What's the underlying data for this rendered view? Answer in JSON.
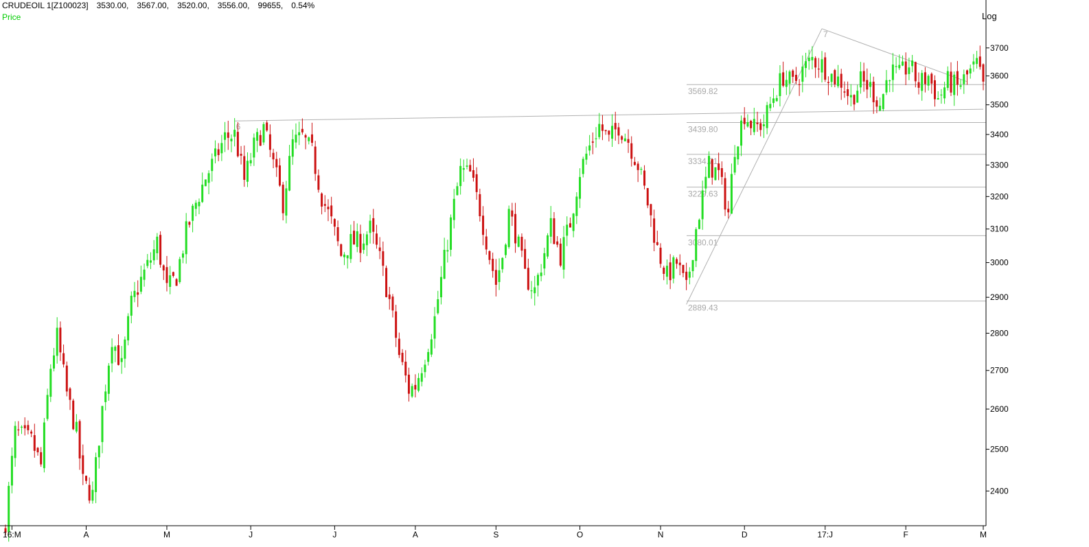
{
  "header": {
    "symbol": "CRUDEOIL 1[Z100023]",
    "ohlc": [
      "3530.00,",
      "3567.00,",
      "3520.00,",
      "3556.00,",
      "99655,",
      "0.54%"
    ],
    "series_label": "Price",
    "scale_label": "Log"
  },
  "colors": {
    "up": "#22dd22",
    "down": "#cc1111",
    "lines": "#b0b0b0",
    "price_label": "#00cc00"
  },
  "chart_data": {
    "type": "candlestick",
    "y_scale": "log",
    "ylim": [
      2320,
      3800
    ],
    "y_ticks": [
      2400,
      2500,
      2600,
      2700,
      2800,
      2900,
      3000,
      3100,
      3200,
      3300,
      3400,
      3500,
      3600,
      3700
    ],
    "x_tick_labels": [
      "16:M",
      "A",
      "M",
      "J",
      "J",
      "A",
      "S",
      "O",
      "N",
      "D",
      "17:J",
      "F",
      "M"
    ],
    "x_tick_index": [
      2,
      25,
      50,
      76,
      102,
      127,
      152,
      178,
      203,
      229,
      254,
      279,
      303
    ],
    "fib_levels": [
      {
        "label": "3569.82",
        "value": 3569.82
      },
      {
        "label": "3439.80",
        "value": 3439.8
      },
      {
        "label": "3334.71",
        "value": 3334.71
      },
      {
        "label": "3229.63",
        "value": 3229.63
      },
      {
        "label": "3080.01",
        "value": 3080.01
      },
      {
        "label": "2889.43",
        "value": 2889.43
      }
    ],
    "annotations": [
      {
        "label": "6",
        "index": 71,
        "value": 3445
      },
      {
        "label": "7",
        "index": 253,
        "value": 3770
      }
    ],
    "trendlines": [
      {
        "from": [
          71,
          3445
        ],
        "to": [
          303,
          3485
        ]
      },
      {
        "from": [
          211,
          2880
        ],
        "to": [
          253,
          3770
        ]
      },
      {
        "from": [
          253,
          3770
        ],
        "to": [
          298,
          3580
        ]
      }
    ],
    "waypoints": [
      [
        0,
        2330
      ],
      [
        3,
        2540
      ],
      [
        8,
        2520
      ],
      [
        11,
        2460
      ],
      [
        14,
        2710
      ],
      [
        16,
        2790
      ],
      [
        19,
        2640
      ],
      [
        22,
        2540
      ],
      [
        24,
        2420
      ],
      [
        27,
        2390
      ],
      [
        30,
        2600
      ],
      [
        33,
        2790
      ],
      [
        36,
        2710
      ],
      [
        39,
        2880
      ],
      [
        42,
        2950
      ],
      [
        45,
        3010
      ],
      [
        47,
        3060
      ],
      [
        50,
        2920
      ],
      [
        53,
        2960
      ],
      [
        56,
        3090
      ],
      [
        59,
        3180
      ],
      [
        62,
        3260
      ],
      [
        65,
        3320
      ],
      [
        68,
        3390
      ],
      [
        71,
        3400
      ],
      [
        74,
        3250
      ],
      [
        77,
        3360
      ],
      [
        80,
        3420
      ],
      [
        83,
        3300
      ],
      [
        86,
        3180
      ],
      [
        89,
        3370
      ],
      [
        92,
        3390
      ],
      [
        95,
        3340
      ],
      [
        98,
        3200
      ],
      [
        101,
        3120
      ],
      [
        104,
        3020
      ],
      [
        107,
        3060
      ],
      [
        110,
        3060
      ],
      [
        113,
        3100
      ],
      [
        116,
        3010
      ],
      [
        119,
        2890
      ],
      [
        122,
        2740
      ],
      [
        125,
        2650
      ],
      [
        127,
        2660
      ],
      [
        130,
        2740
      ],
      [
        133,
        2840
      ],
      [
        135,
        2950
      ],
      [
        138,
        3120
      ],
      [
        141,
        3280
      ],
      [
        144,
        3270
      ],
      [
        147,
        3160
      ],
      [
        150,
        3020
      ],
      [
        152,
        2940
      ],
      [
        154,
        3020
      ],
      [
        156,
        3150
      ],
      [
        158,
        3090
      ],
      [
        161,
        2960
      ],
      [
        164,
        2920
      ],
      [
        167,
        3030
      ],
      [
        169,
        3110
      ],
      [
        172,
        3020
      ],
      [
        175,
        3120
      ],
      [
        178,
        3280
      ],
      [
        181,
        3360
      ],
      [
        184,
        3430
      ],
      [
        187,
        3380
      ],
      [
        190,
        3430
      ],
      [
        193,
        3380
      ],
      [
        196,
        3300
      ],
      [
        199,
        3180
      ],
      [
        202,
        3040
      ],
      [
        205,
        2960
      ],
      [
        208,
        3000
      ],
      [
        211,
        2920
      ],
      [
        214,
        3100
      ],
      [
        216,
        3200
      ],
      [
        218,
        3300
      ],
      [
        221,
        3270
      ],
      [
        224,
        3150
      ],
      [
        226,
        3360
      ],
      [
        229,
        3470
      ],
      [
        232,
        3420
      ],
      [
        235,
        3440
      ],
      [
        238,
        3530
      ],
      [
        241,
        3600
      ],
      [
        244,
        3570
      ],
      [
        247,
        3620
      ],
      [
        250,
        3660
      ],
      [
        253,
        3640
      ],
      [
        256,
        3600
      ],
      [
        259,
        3580
      ],
      [
        262,
        3520
      ],
      [
        265,
        3580
      ],
      [
        268,
        3560
      ],
      [
        271,
        3500
      ],
      [
        274,
        3620
      ],
      [
        277,
        3600
      ],
      [
        280,
        3640
      ],
      [
        283,
        3570
      ],
      [
        286,
        3600
      ],
      [
        289,
        3520
      ],
      [
        292,
        3580
      ],
      [
        295,
        3560
      ],
      [
        298,
        3600
      ],
      [
        301,
        3640
      ],
      [
        303,
        3560
      ]
    ]
  }
}
